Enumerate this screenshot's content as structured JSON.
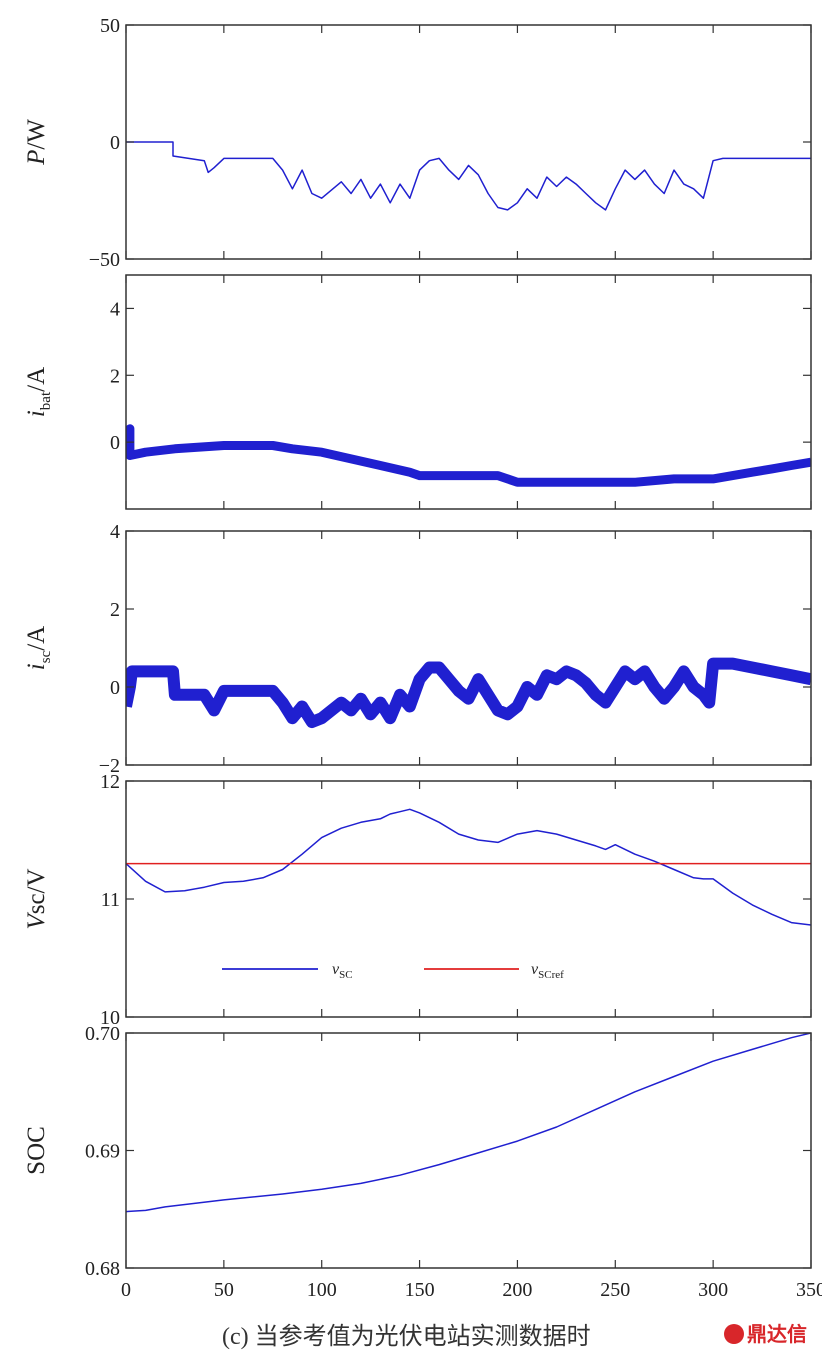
{
  "caption": "(c) 当参考值为光伏电站实测数据时",
  "watermark": "鼎达信",
  "colors": {
    "series_blue": "#2020d0",
    "ref_red": "#e02020",
    "axis": "#333333"
  },
  "chart_data": [
    {
      "type": "line",
      "ylabel": {
        "main": "P",
        "sub": "",
        "unit": "/W",
        "italic_main": true
      },
      "ylim": [
        -50,
        50
      ],
      "yticks": [
        -50,
        0,
        50
      ],
      "xlim": [
        0,
        350
      ],
      "series": [
        {
          "color": "#2020d0",
          "width": 1.5,
          "x": [
            0,
            24,
            24,
            40,
            42,
            45,
            50,
            75,
            80,
            85,
            90,
            95,
            100,
            110,
            115,
            120,
            125,
            130,
            135,
            140,
            145,
            150,
            155,
            160,
            165,
            170,
            175,
            180,
            185,
            190,
            195,
            200,
            205,
            210,
            215,
            220,
            225,
            230,
            235,
            240,
            245,
            250,
            255,
            260,
            265,
            270,
            275,
            280,
            285,
            290,
            295,
            300,
            305,
            350
          ],
          "y": [
            0,
            0,
            -6,
            -8,
            -13,
            -11,
            -7,
            -7,
            -12,
            -20,
            -12,
            -22,
            -24,
            -17,
            -22,
            -16,
            -24,
            -18,
            -26,
            -18,
            -24,
            -12,
            -8,
            -7,
            -12,
            -16,
            -10,
            -14,
            -22,
            -28,
            -29,
            -26,
            -20,
            -24,
            -15,
            -19,
            -15,
            -18,
            -22,
            -26,
            -29,
            -20,
            -12,
            -16,
            -12,
            -18,
            -22,
            -12,
            -18,
            -20,
            -24,
            -8,
            -7,
            -7
          ]
        }
      ]
    },
    {
      "type": "line",
      "ylabel": {
        "main": "i",
        "sub": "bat",
        "unit": "/A",
        "italic_main": true
      },
      "ylim": [
        -2,
        5
      ],
      "yticks": [
        0,
        2,
        4
      ],
      "xlim": [
        0,
        350
      ],
      "series": [
        {
          "color": "#2020d0",
          "width": 9,
          "x": [
            0,
            2,
            2,
            10,
            25,
            50,
            65,
            75,
            85,
            100,
            115,
            130,
            145,
            150,
            175,
            190,
            200,
            210,
            230,
            260,
            280,
            300,
            310,
            320,
            330,
            340,
            350
          ],
          "y": [
            0.2,
            0.4,
            -0.4,
            -0.3,
            -0.2,
            -0.1,
            -0.1,
            -0.1,
            -0.2,
            -0.3,
            -0.5,
            -0.7,
            -0.9,
            -1.0,
            -1.0,
            -1.0,
            -1.2,
            -1.2,
            -1.2,
            -1.2,
            -1.1,
            -1.1,
            -1.0,
            -0.9,
            -0.8,
            -0.7,
            -0.6
          ]
        }
      ]
    },
    {
      "type": "line",
      "ylabel": {
        "main": "i",
        "sub": "sc",
        "unit": "/A",
        "italic_main": true
      },
      "ylim": [
        -2,
        4
      ],
      "yticks": [
        -2,
        0,
        2,
        4
      ],
      "xlim": [
        0,
        350
      ],
      "series": [
        {
          "color": "#2020d0",
          "width": 12,
          "x": [
            0,
            2,
            3,
            24,
            25,
            40,
            45,
            50,
            75,
            80,
            85,
            90,
            95,
            100,
            110,
            115,
            120,
            125,
            130,
            135,
            140,
            145,
            150,
            155,
            160,
            165,
            170,
            175,
            180,
            185,
            190,
            195,
            200,
            205,
            210,
            215,
            220,
            225,
            230,
            235,
            240,
            245,
            250,
            255,
            260,
            265,
            270,
            275,
            280,
            285,
            290,
            295,
            298,
            300,
            310,
            320,
            330,
            340,
            350
          ],
          "y": [
            -0.5,
            0,
            0.4,
            0.4,
            -0.2,
            -0.2,
            -0.6,
            -0.1,
            -0.1,
            -0.4,
            -0.8,
            -0.5,
            -0.9,
            -0.8,
            -0.4,
            -0.6,
            -0.3,
            -0.7,
            -0.4,
            -0.8,
            -0.2,
            -0.5,
            0.2,
            0.5,
            0.5,
            0.2,
            -0.1,
            -0.3,
            0.2,
            -0.2,
            -0.6,
            -0.7,
            -0.5,
            0.0,
            -0.2,
            0.3,
            0.2,
            0.4,
            0.3,
            0.1,
            -0.2,
            -0.4,
            0.0,
            0.4,
            0.2,
            0.4,
            0.0,
            -0.3,
            0.0,
            0.4,
            0.0,
            -0.2,
            -0.4,
            0.6,
            0.6,
            0.5,
            0.4,
            0.3,
            0.2
          ]
        }
      ]
    },
    {
      "type": "line",
      "ylabel": {
        "main": "V",
        "sub": "",
        "unit": "sc/V",
        "italic_main": true
      },
      "ylim": [
        10,
        12
      ],
      "yticks": [
        10,
        11,
        12
      ],
      "xlim": [
        0,
        350
      ],
      "series": [
        {
          "color": "#2020d0",
          "width": 1.5,
          "x": [
            0,
            10,
            20,
            30,
            40,
            50,
            60,
            70,
            80,
            90,
            100,
            110,
            120,
            130,
            135,
            140,
            145,
            150,
            160,
            170,
            180,
            190,
            200,
            210,
            220,
            230,
            240,
            245,
            250,
            260,
            270,
            280,
            290,
            295,
            300,
            310,
            320,
            330,
            340,
            350
          ],
          "y": [
            11.3,
            11.15,
            11.06,
            11.07,
            11.1,
            11.14,
            11.15,
            11.18,
            11.25,
            11.38,
            11.52,
            11.6,
            11.65,
            11.68,
            11.72,
            11.74,
            11.76,
            11.73,
            11.65,
            11.55,
            11.5,
            11.48,
            11.55,
            11.58,
            11.55,
            11.5,
            11.45,
            11.42,
            11.46,
            11.38,
            11.32,
            11.25,
            11.18,
            11.17,
            11.17,
            11.05,
            10.95,
            10.87,
            10.8,
            10.78
          ]
        },
        {
          "color": "#e02020",
          "width": 1.5,
          "x": [
            0,
            350
          ],
          "y": [
            11.3,
            11.3
          ]
        }
      ],
      "legend": [
        {
          "label": "v",
          "sub": "SC",
          "color": "#2020d0"
        },
        {
          "label": "v",
          "sub": "SCref",
          "color": "#e02020"
        }
      ]
    },
    {
      "type": "line",
      "ylabel": {
        "main": "SOC",
        "sub": "",
        "unit": "",
        "italic_main": false
      },
      "ylim": [
        0.68,
        0.7
      ],
      "yticks": [
        0.68,
        0.69,
        0.7
      ],
      "ytick_labels": [
        "0.68",
        "0.69",
        "0.70"
      ],
      "xlim": [
        0,
        350
      ],
      "xticks": [
        0,
        50,
        100,
        150,
        200,
        250,
        300,
        350
      ],
      "series": [
        {
          "color": "#2020d0",
          "width": 1.5,
          "x": [
            0,
            10,
            20,
            50,
            80,
            100,
            120,
            140,
            160,
            180,
            200,
            220,
            240,
            260,
            280,
            300,
            320,
            340,
            350
          ],
          "y": [
            0.6848,
            0.6849,
            0.6852,
            0.6858,
            0.6863,
            0.6867,
            0.6872,
            0.6879,
            0.6888,
            0.6898,
            0.6908,
            0.692,
            0.6935,
            0.695,
            0.6963,
            0.6976,
            0.6986,
            0.6996,
            0.7
          ]
        }
      ]
    }
  ]
}
